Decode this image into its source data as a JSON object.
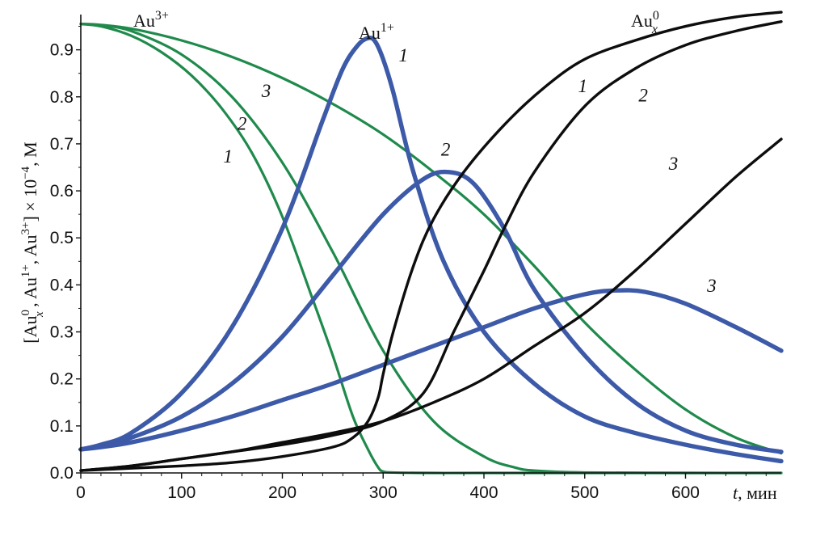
{
  "chart_data": {
    "type": "line",
    "xlabel": {
      "var": "t",
      "unit": ", мин"
    },
    "ylabel_parts": [
      "[Au",
      "0",
      "x",
      " , Au",
      "1+",
      ", Au",
      "3+",
      "] × 10",
      "−4",
      ", М"
    ],
    "xlim": [
      0,
      695
    ],
    "ylim": [
      0,
      0.975
    ],
    "x_ticks": [
      0,
      100,
      200,
      300,
      400,
      500,
      600
    ],
    "x_tick_labels": [
      "0",
      "100",
      "200",
      "300",
      "400",
      "500",
      "600"
    ],
    "y_ticks": [
      0.0,
      0.1,
      0.2,
      0.3,
      0.4,
      0.5,
      0.6,
      0.7,
      0.8,
      0.9
    ],
    "y_tick_labels": [
      "0.0",
      "0.1",
      "0.2",
      "0.3",
      "0.4",
      "0.5",
      "0.6",
      "0.7",
      "0.8",
      "0.9"
    ],
    "species_labels": [
      {
        "base": "Au",
        "sup": "3+",
        "sub": ""
      },
      {
        "base": "Au",
        "sup": "1+",
        "sub": ""
      },
      {
        "base": "Au",
        "sup": "0",
        "sub": "x"
      }
    ],
    "colors": {
      "au3": "#1f8a4c",
      "au1": "#3c5aa8",
      "au0": "#0d0d0d"
    },
    "series": [
      {
        "name": "",
        "species": "au3",
        "curve": "1",
        "x": [
          0,
          20,
          50,
          80,
          110,
          140,
          170,
          200,
          230,
          250,
          270,
          285,
          295,
          300,
          310,
          350,
          400,
          500,
          600,
          695
        ],
        "y": [
          0.955,
          0.95,
          0.93,
          0.895,
          0.845,
          0.775,
          0.68,
          0.545,
          0.37,
          0.25,
          0.12,
          0.05,
          0.012,
          0.003,
          0.001,
          0.0,
          0.0,
          0.0,
          0.0,
          0.0
        ]
      },
      {
        "name": "",
        "species": "au3",
        "curve": "2",
        "x": [
          0,
          20,
          50,
          100,
          150,
          200,
          250,
          300,
          350,
          400,
          430,
          450,
          500,
          600,
          695
        ],
        "y": [
          0.955,
          0.952,
          0.94,
          0.89,
          0.8,
          0.66,
          0.47,
          0.26,
          0.11,
          0.035,
          0.012,
          0.005,
          0.001,
          0.0,
          0.0
        ]
      },
      {
        "name": "",
        "species": "au3",
        "curve": "3",
        "x": [
          0,
          20,
          50,
          100,
          150,
          200,
          250,
          300,
          350,
          400,
          450,
          500,
          550,
          600,
          650,
          695
        ],
        "y": [
          0.955,
          0.953,
          0.945,
          0.92,
          0.885,
          0.84,
          0.785,
          0.72,
          0.64,
          0.55,
          0.44,
          0.32,
          0.22,
          0.135,
          0.075,
          0.042
        ]
      },
      {
        "name": "",
        "species": "au1",
        "curve": "1",
        "x": [
          0,
          20,
          50,
          100,
          150,
          200,
          240,
          260,
          275,
          285,
          292,
          300,
          310,
          330,
          360,
          400,
          450,
          500,
          550,
          600,
          650,
          695
        ],
        "y": [
          0.05,
          0.06,
          0.085,
          0.17,
          0.31,
          0.52,
          0.75,
          0.86,
          0.91,
          0.925,
          0.918,
          0.88,
          0.81,
          0.64,
          0.45,
          0.3,
          0.19,
          0.12,
          0.085,
          0.06,
          0.04,
          0.025
        ]
      },
      {
        "name": "",
        "species": "au1",
        "curve": "2",
        "x": [
          0,
          20,
          50,
          100,
          150,
          200,
          250,
          300,
          340,
          365,
          390,
          420,
          450,
          500,
          550,
          600,
          650,
          695
        ],
        "y": [
          0.05,
          0.058,
          0.075,
          0.12,
          0.19,
          0.29,
          0.42,
          0.55,
          0.625,
          0.64,
          0.615,
          0.52,
          0.39,
          0.25,
          0.15,
          0.09,
          0.06,
          0.045
        ]
      },
      {
        "name": "",
        "species": "au1",
        "curve": "3",
        "x": [
          0,
          20,
          50,
          100,
          150,
          200,
          250,
          300,
          350,
          400,
          450,
          500,
          530,
          560,
          600,
          650,
          695
        ],
        "y": [
          0.05,
          0.055,
          0.065,
          0.09,
          0.12,
          0.155,
          0.19,
          0.23,
          0.27,
          0.31,
          0.35,
          0.38,
          0.388,
          0.385,
          0.36,
          0.31,
          0.26
        ]
      },
      {
        "name": "",
        "species": "au0",
        "curve": "1",
        "x": [
          0,
          50,
          100,
          150,
          200,
          250,
          270,
          285,
          295,
          300,
          310,
          330,
          350,
          380,
          420,
          460,
          500,
          550,
          600,
          650,
          695
        ],
        "y": [
          0.005,
          0.01,
          0.015,
          0.022,
          0.035,
          0.055,
          0.075,
          0.11,
          0.16,
          0.21,
          0.3,
          0.44,
          0.54,
          0.64,
          0.74,
          0.82,
          0.88,
          0.92,
          0.95,
          0.97,
          0.98
        ]
      },
      {
        "name": "",
        "species": "au0",
        "curve": "2",
        "x": [
          0,
          50,
          100,
          150,
          200,
          250,
          300,
          340,
          370,
          400,
          420,
          450,
          500,
          550,
          600,
          650,
          695
        ],
        "y": [
          0.005,
          0.015,
          0.03,
          0.045,
          0.06,
          0.08,
          0.11,
          0.17,
          0.3,
          0.43,
          0.52,
          0.64,
          0.78,
          0.86,
          0.91,
          0.94,
          0.96
        ]
      },
      {
        "name": "",
        "species": "au0",
        "curve": "3",
        "x": [
          0,
          50,
          100,
          150,
          200,
          250,
          300,
          350,
          400,
          450,
          500,
          550,
          600,
          650,
          695
        ],
        "y": [
          0.005,
          0.015,
          0.03,
          0.045,
          0.065,
          0.085,
          0.11,
          0.15,
          0.2,
          0.27,
          0.34,
          0.43,
          0.53,
          0.63,
          0.71
        ]
      }
    ],
    "annotations": [
      {
        "text": "1",
        "x": 320,
        "y": 0.875
      },
      {
        "text": "2",
        "x": 362,
        "y": 0.675
      },
      {
        "text": "3",
        "x": 626,
        "y": 0.385
      },
      {
        "text": "1",
        "x": 498,
        "y": 0.81
      },
      {
        "text": "2",
        "x": 558,
        "y": 0.79
      },
      {
        "text": "3",
        "x": 588,
        "y": 0.645
      },
      {
        "text": "3",
        "x": 184,
        "y": 0.8
      },
      {
        "text": "2",
        "x": 160,
        "y": 0.73
      },
      {
        "text": "1",
        "x": 146,
        "y": 0.66
      }
    ],
    "grid": false,
    "legend": "none"
  }
}
